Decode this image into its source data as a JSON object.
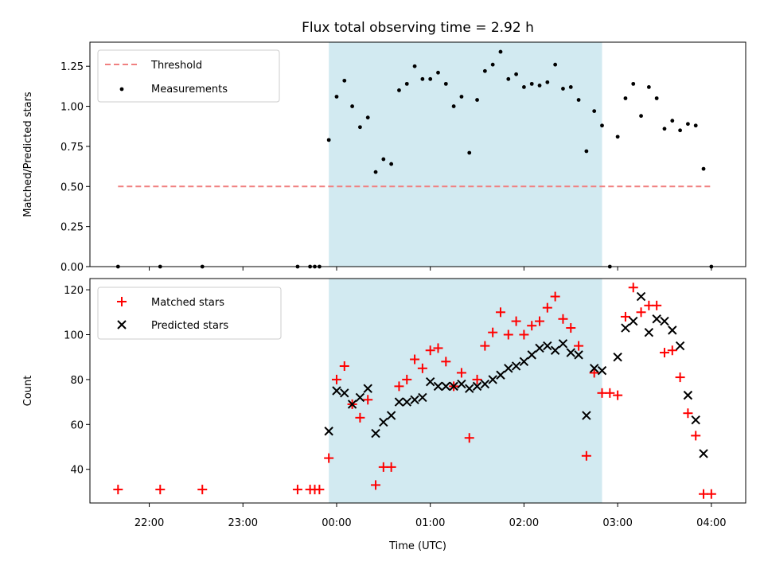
{
  "chart_data": [
    {
      "type": "scatter",
      "title": "Flux total observing time = 2.92 h",
      "xlabel": "",
      "ylabel": "Matched/Predicted stars",
      "ylim": [
        0,
        1.4
      ],
      "yticks": [
        "0.00",
        "0.25",
        "0.50",
        "0.75",
        "1.00",
        "1.25"
      ],
      "xticks_minutes_from_midnight": [
        -120,
        -60,
        0,
        60,
        120,
        180,
        240
      ],
      "shaded_region_minutes": [
        -5,
        170
      ],
      "shaded_color": "#add8e6",
      "legend_position": "top-left",
      "threshold": {
        "name": "Threshold",
        "y": 0.5,
        "x_range_minutes": [
          -140,
          240
        ],
        "color": "#f08080",
        "style": "dashed"
      },
      "series": [
        {
          "name": "Measurements",
          "color": "#000000",
          "marker": "dot",
          "points": [
            [
              -140,
              0.0
            ],
            [
              -113,
              0.0
            ],
            [
              -86,
              0.0
            ],
            [
              -25,
              0.0
            ],
            [
              -17,
              0.0
            ],
            [
              -14,
              0.0
            ],
            [
              -11,
              0.0
            ],
            [
              -5,
              0.79
            ],
            [
              0,
              1.06
            ],
            [
              5,
              1.16
            ],
            [
              10,
              1.0
            ],
            [
              15,
              0.87
            ],
            [
              20,
              0.93
            ],
            [
              25,
              0.59
            ],
            [
              30,
              0.67
            ],
            [
              35,
              0.64
            ],
            [
              40,
              1.1
            ],
            [
              45,
              1.14
            ],
            [
              50,
              1.25
            ],
            [
              55,
              1.17
            ],
            [
              60,
              1.17
            ],
            [
              65,
              1.21
            ],
            [
              70,
              1.14
            ],
            [
              75,
              1.0
            ],
            [
              80,
              1.06
            ],
            [
              85,
              0.71
            ],
            [
              90,
              1.04
            ],
            [
              95,
              1.22
            ],
            [
              100,
              1.26
            ],
            [
              105,
              1.34
            ],
            [
              110,
              1.17
            ],
            [
              115,
              1.2
            ],
            [
              120,
              1.12
            ],
            [
              125,
              1.14
            ],
            [
              130,
              1.13
            ],
            [
              135,
              1.15
            ],
            [
              140,
              1.26
            ],
            [
              145,
              1.11
            ],
            [
              150,
              1.12
            ],
            [
              155,
              1.04
            ],
            [
              160,
              0.72
            ],
            [
              165,
              0.97
            ],
            [
              170,
              0.88
            ],
            [
              175,
              0.0
            ],
            [
              180,
              0.81
            ],
            [
              185,
              1.05
            ],
            [
              190,
              1.14
            ],
            [
              195,
              0.94
            ],
            [
              200,
              1.12
            ],
            [
              205,
              1.05
            ],
            [
              210,
              0.86
            ],
            [
              215,
              0.91
            ],
            [
              220,
              0.85
            ],
            [
              225,
              0.89
            ],
            [
              230,
              0.88
            ],
            [
              235,
              0.61
            ],
            [
              240,
              0.0
            ]
          ]
        }
      ]
    },
    {
      "type": "scatter",
      "title": "",
      "xlabel": "Time (UTC)",
      "ylabel": "Count",
      "ylim": [
        25,
        125
      ],
      "yticks": [
        "40",
        "60",
        "80",
        "100",
        "120"
      ],
      "xticks": [
        "22:00",
        "23:00",
        "00:00",
        "01:00",
        "02:00",
        "03:00",
        "04:00"
      ],
      "xticks_minutes_from_midnight": [
        -120,
        -60,
        0,
        60,
        120,
        180,
        240
      ],
      "shaded_region_minutes": [
        -5,
        170
      ],
      "shaded_color": "#add8e6",
      "legend_position": "top-left",
      "series": [
        {
          "name": "Matched stars",
          "color": "#ff0000",
          "marker": "plus",
          "points": [
            [
              -140,
              31
            ],
            [
              -113,
              31
            ],
            [
              -86,
              31
            ],
            [
              -25,
              31
            ],
            [
              -17,
              31
            ],
            [
              -14,
              31
            ],
            [
              -11,
              31
            ],
            [
              -5,
              45
            ],
            [
              0,
              80
            ],
            [
              5,
              86
            ],
            [
              10,
              69
            ],
            [
              15,
              63
            ],
            [
              20,
              71
            ],
            [
              25,
              33
            ],
            [
              30,
              41
            ],
            [
              35,
              41
            ],
            [
              40,
              77
            ],
            [
              45,
              80
            ],
            [
              50,
              89
            ],
            [
              55,
              85
            ],
            [
              60,
              93
            ],
            [
              65,
              94
            ],
            [
              70,
              88
            ],
            [
              75,
              77
            ],
            [
              80,
              83
            ],
            [
              85,
              54
            ],
            [
              90,
              80
            ],
            [
              95,
              95
            ],
            [
              100,
              101
            ],
            [
              105,
              110
            ],
            [
              110,
              100
            ],
            [
              115,
              106
            ],
            [
              120,
              100
            ],
            [
              125,
              104
            ],
            [
              130,
              106
            ],
            [
              135,
              112
            ],
            [
              140,
              117
            ],
            [
              145,
              107
            ],
            [
              150,
              103
            ],
            [
              155,
              95
            ],
            [
              160,
              46
            ],
            [
              165,
              83
            ],
            [
              170,
              74
            ],
            [
              175,
              74
            ],
            [
              180,
              73
            ],
            [
              185,
              108
            ],
            [
              190,
              121
            ],
            [
              195,
              110
            ],
            [
              200,
              113
            ],
            [
              205,
              113
            ],
            [
              210,
              92
            ],
            [
              215,
              93
            ],
            [
              220,
              81
            ],
            [
              225,
              65
            ],
            [
              230,
              55
            ],
            [
              235,
              29
            ],
            [
              240,
              29
            ]
          ]
        },
        {
          "name": "Predicted stars",
          "color": "#000000",
          "marker": "x",
          "points": [
            [
              -5,
              57
            ],
            [
              0,
              75
            ],
            [
              5,
              74
            ],
            [
              10,
              69
            ],
            [
              15,
              72
            ],
            [
              20,
              76
            ],
            [
              25,
              56
            ],
            [
              30,
              61
            ],
            [
              35,
              64
            ],
            [
              40,
              70
            ],
            [
              45,
              70
            ],
            [
              50,
              71
            ],
            [
              55,
              72
            ],
            [
              60,
              79
            ],
            [
              65,
              77
            ],
            [
              70,
              77
            ],
            [
              75,
              77
            ],
            [
              80,
              78
            ],
            [
              85,
              76
            ],
            [
              90,
              77
            ],
            [
              95,
              78
            ],
            [
              100,
              80
            ],
            [
              105,
              82
            ],
            [
              110,
              85
            ],
            [
              115,
              86
            ],
            [
              120,
              88
            ],
            [
              125,
              91
            ],
            [
              130,
              94
            ],
            [
              135,
              95
            ],
            [
              140,
              93
            ],
            [
              145,
              96
            ],
            [
              150,
              92
            ],
            [
              155,
              91
            ],
            [
              160,
              64
            ],
            [
              165,
              85
            ],
            [
              170,
              84
            ],
            [
              180,
              90
            ],
            [
              185,
              103
            ],
            [
              190,
              106
            ],
            [
              195,
              117
            ],
            [
              200,
              101
            ],
            [
              205,
              107
            ],
            [
              210,
              106
            ],
            [
              215,
              102
            ],
            [
              220,
              95
            ],
            [
              225,
              73
            ],
            [
              230,
              62
            ],
            [
              235,
              47
            ]
          ]
        }
      ]
    }
  ]
}
